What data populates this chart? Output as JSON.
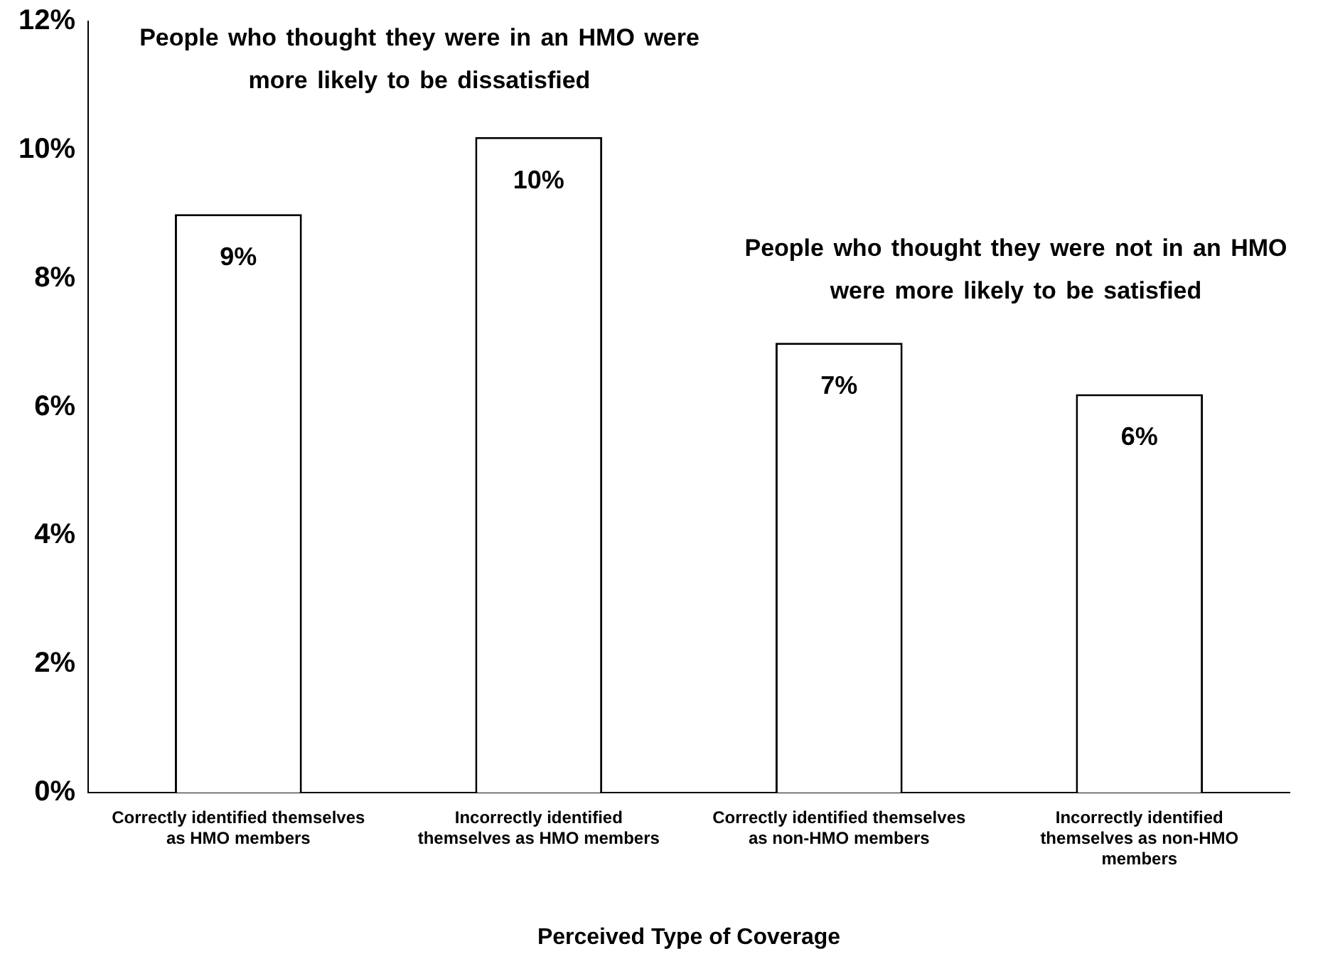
{
  "chart_data": {
    "type": "bar",
    "xlabel": "Perceived Type of Coverage",
    "categories": [
      "Correctly identified themselves as HMO members",
      "Incorrectly identified themselves as HMO members",
      "Correctly identified themselves as non-HMO members",
      "Incorrectly identified themselves as non-HMO members"
    ],
    "values": [
      9,
      10.2,
      7,
      6.2
    ],
    "value_labels": [
      "9%",
      "10%",
      "7%",
      "6%"
    ],
    "color": "#ffffff",
    "ylim": [
      0,
      12
    ],
    "yticks": [
      {
        "value": 0,
        "label": "0%"
      },
      {
        "value": 2,
        "label": "2%"
      },
      {
        "value": 4,
        "label": "4%"
      },
      {
        "value": 6,
        "label": "6%"
      },
      {
        "value": 8,
        "label": "8%"
      },
      {
        "value": 10,
        "label": "10%"
      },
      {
        "value": 12,
        "label": "12%"
      }
    ],
    "grid": false,
    "legend": false,
    "annotations": [
      "People who thought they were in an HMO were more likely to be dissatisfied",
      "People who thought they were not in an HMO were more likely to be satisfied"
    ]
  }
}
